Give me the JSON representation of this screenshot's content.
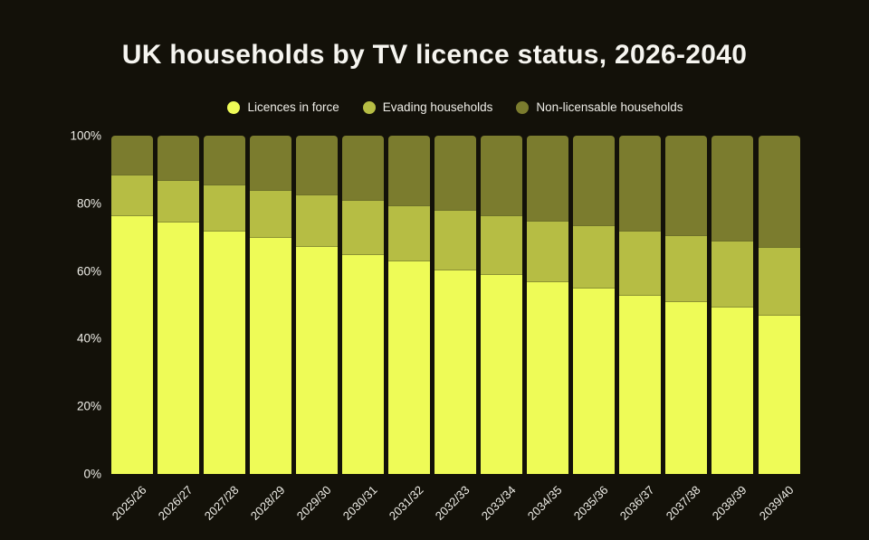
{
  "page": {
    "background": "#131109",
    "text_color": "#efeee8"
  },
  "title": {
    "text": "UK households by TV licence status, 2026-2040",
    "color": "#f6f5f0"
  },
  "legend": [
    {
      "label": "Licences in force",
      "color": "#eefb57"
    },
    {
      "label": "Evading households",
      "color": "#b6bd44"
    },
    {
      "label": "Non-licensable households",
      "color": "#7b7c2e"
    }
  ],
  "chart_data": {
    "type": "bar",
    "stacked": true,
    "normalized_percent": true,
    "title": "UK households by TV licence status, 2026-2040",
    "xlabel": "",
    "ylabel": "",
    "ylim": [
      0,
      100
    ],
    "yticks": [
      "0%",
      "20%",
      "40%",
      "60%",
      "80%",
      "100%"
    ],
    "grid": false,
    "legend_position": "top",
    "categories": [
      "2025/26",
      "2026/27",
      "2027/28",
      "2028/29",
      "2029/30",
      "2030/31",
      "2031/32",
      "2032/33",
      "2033/34",
      "2034/35",
      "2035/36",
      "2036/37",
      "2037/38",
      "2038/39",
      "2039/40"
    ],
    "series": [
      {
        "name": "Licences in force",
        "color": "#eefb57",
        "values": [
          76.5,
          74.5,
          72,
          70,
          67.5,
          65,
          63,
          60.5,
          59,
          57,
          55,
          53,
          51,
          49.5,
          47
        ]
      },
      {
        "name": "Evading households",
        "color": "#b6bd44",
        "values": [
          12,
          12.5,
          13.5,
          14,
          15,
          16,
          16.5,
          17.5,
          17.5,
          18,
          18.5,
          19,
          19.5,
          19.5,
          20
        ]
      },
      {
        "name": "Non-licensable households",
        "color": "#7b7c2e",
        "values": [
          11.5,
          13,
          14.5,
          16,
          17.5,
          19,
          20.5,
          22,
          23.5,
          25,
          26.5,
          28,
          29.5,
          31,
          33
        ]
      }
    ]
  }
}
